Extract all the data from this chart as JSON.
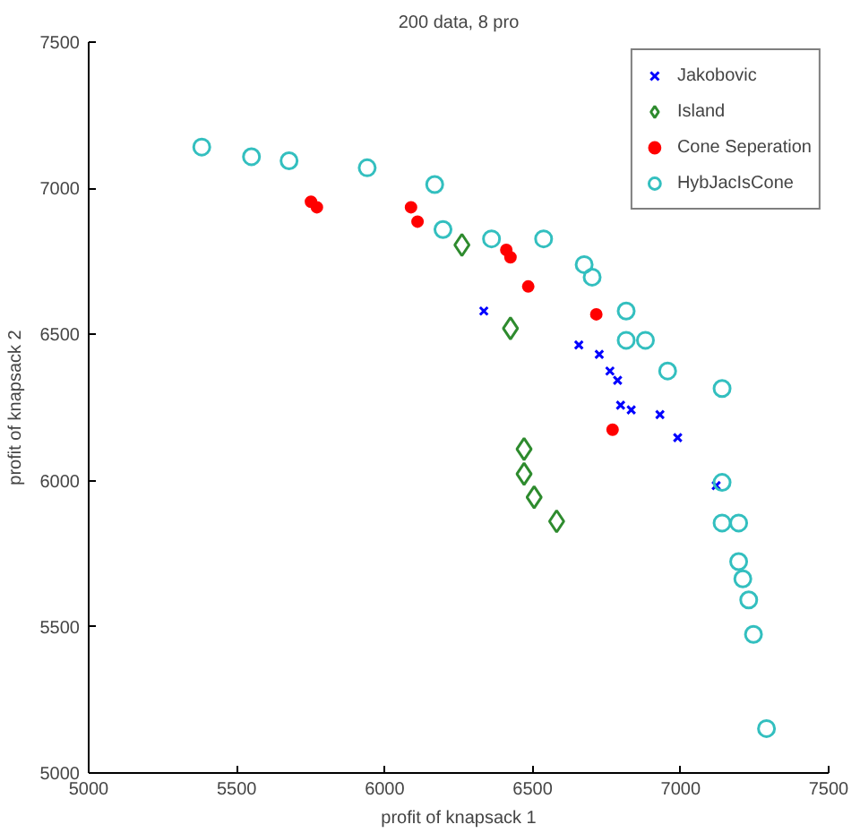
{
  "chart_data": {
    "type": "scatter",
    "title": "200 data, 8 pro",
    "xlabel": "profit of knapsack 1",
    "ylabel": "profit of knapsack 2",
    "xlim": [
      5000,
      7500
    ],
    "ylim": [
      5000,
      7500
    ],
    "xticks": [
      5000,
      5500,
      6000,
      6500,
      7000,
      7500
    ],
    "yticks": [
      5000,
      5500,
      6000,
      6500,
      7000,
      7500
    ],
    "grid": false,
    "legend": "top right",
    "series": [
      {
        "name": "Jakobovic",
        "color": "#0000ff",
        "marker": "cross",
        "x": [
          6335,
          6656,
          6725,
          6761,
          6787,
          6797,
          6833,
          6930,
          6990,
          7120
        ],
        "values": [
          6580,
          6464,
          6432,
          6375,
          6343,
          6258,
          6242,
          6226,
          6147,
          5983
        ]
      },
      {
        "name": "Island",
        "color": "#2e8b2e",
        "marker": "diamond",
        "x": [
          6261,
          6425,
          6471,
          6471,
          6505,
          6581
        ],
        "values": [
          6806,
          6521,
          6108,
          6023,
          5943,
          5861
        ]
      },
      {
        "name": "Cone Seperation",
        "color": "#ff0000",
        "marker": "circle",
        "x": [
          5751,
          5771,
          6089,
          6111,
          6411,
          6425,
          6485,
          6715,
          6770
        ],
        "values": [
          6954,
          6935,
          6935,
          6886,
          6789,
          6764,
          6664,
          6569,
          6174
        ]
      },
      {
        "name": "HybJacIsCone",
        "color": "#33bfbf",
        "marker": "circle",
        "x": [
          5382,
          5550,
          5677,
          5941,
          6169,
          6197,
          6361,
          6537,
          6674,
          6701,
          6816,
          6816,
          6881,
          6956,
          7140,
          7140,
          7140,
          7196,
          7196,
          7210,
          7230,
          7246,
          7290
        ],
        "values": [
          7141,
          7108,
          7094,
          7070,
          7013,
          6859,
          6827,
          6827,
          6739,
          6696,
          6580,
          6480,
          6480,
          6375,
          6315,
          5994,
          5855,
          5855,
          5723,
          5664,
          5592,
          5474,
          5152
        ]
      }
    ]
  }
}
